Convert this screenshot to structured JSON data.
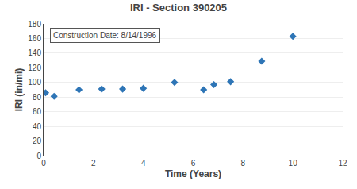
{
  "chart_data": {
    "type": "scatter",
    "title": "IRI - Section 390205",
    "xlabel": "Time (Years)",
    "ylabel": "IRI (in/mi)",
    "annotation": "Construction Date: 8/14/1996",
    "x": [
      0.08,
      0.42,
      1.42,
      2.33,
      3.17,
      4.0,
      5.25,
      6.42,
      6.83,
      7.5,
      8.75,
      10.0
    ],
    "values": [
      86,
      81,
      90,
      91,
      91,
      92,
      100,
      90,
      97,
      101,
      129,
      163
    ],
    "color": "#2E75B6",
    "marker": "diamond",
    "xlim": [
      0,
      12
    ],
    "ylim": [
      0,
      180
    ],
    "xticks": [
      0,
      2,
      4,
      6,
      8,
      10,
      12
    ],
    "yticks": [
      0,
      20,
      40,
      60,
      80,
      100,
      120,
      140,
      160,
      180
    ],
    "grid": "y"
  }
}
